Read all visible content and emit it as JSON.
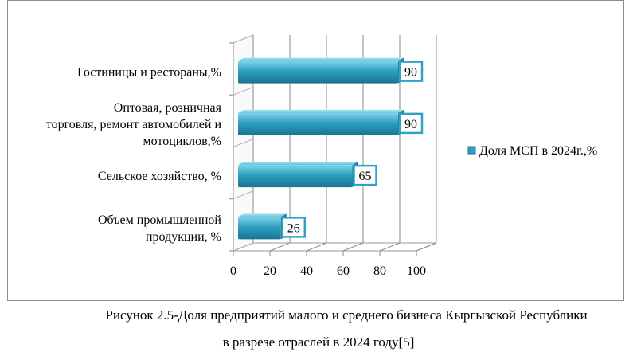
{
  "chart_data": {
    "type": "bar",
    "orientation": "horizontal",
    "style": "3d",
    "categories": [
      "Объем промышленной продукции, %",
      "Сельское хозяйство, %",
      "Оптовая, розничная торговля, ремонт автомобилей и мотоциклов,%",
      "Гостиницы и рестораны,%"
    ],
    "category_lines": [
      [
        "Объем промышленной",
        "продукции, %"
      ],
      [
        "Сельское хозяйство, %"
      ],
      [
        "Оптовая, розничная",
        "торговля, ремонт автомобилей и",
        "мотоциклов,%"
      ],
      [
        "Гостиницы и рестораны,%"
      ]
    ],
    "series": [
      {
        "name": "Доля МСП в 2024г.,%",
        "values": [
          26,
          65,
          90,
          90
        ]
      }
    ],
    "data_labels": [
      "26",
      "65",
      "90",
      "90"
    ],
    "xlim": [
      0,
      100
    ],
    "x_ticks": [
      "0",
      "20",
      "40",
      "60",
      "80",
      "100"
    ],
    "grid": true,
    "legend_position": "right",
    "bar_color": "#2e9fc0"
  },
  "caption": {
    "line1": "Рисунок 2.5-Доля предприятий малого и среднего бизнеса Кыргызской Республики",
    "line2": "в разрезе отраслей в 2024 году[5]"
  }
}
